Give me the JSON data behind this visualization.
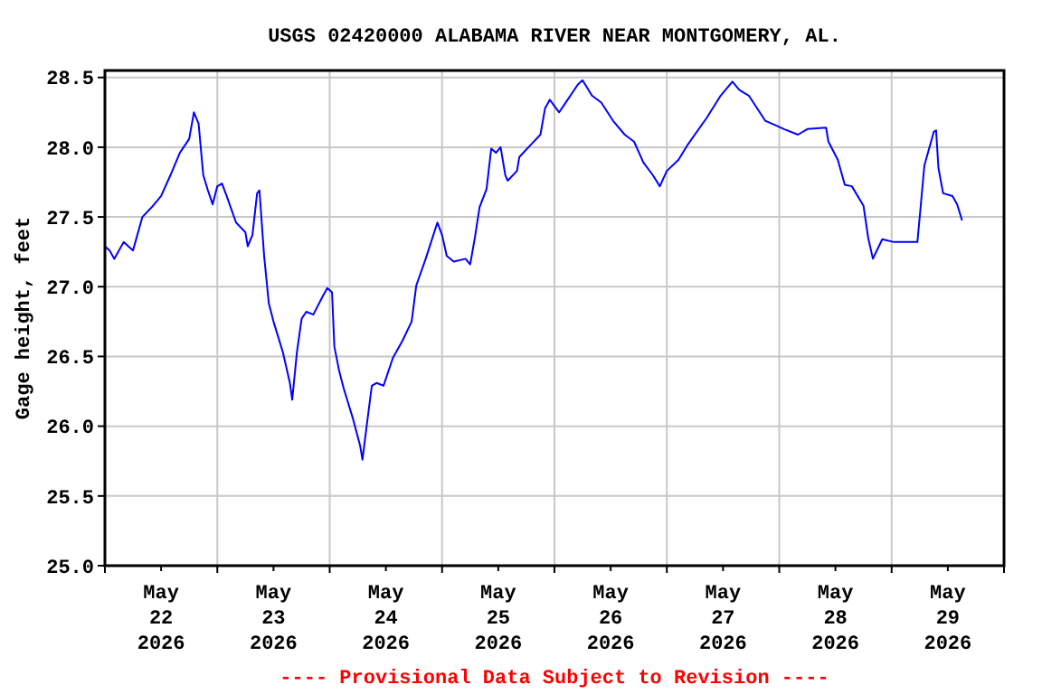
{
  "chart_data": {
    "type": "line",
    "title": "USGS 02420000 ALABAMA RIVER NEAR MONTGOMERY, AL.",
    "ylabel": "Gage height, feet",
    "annotations": [
      "---- Provisional Data Subject to Revision ----"
    ],
    "xlim": [
      "2026-05-22T00:00",
      "2026-05-30T00:00"
    ],
    "xticks": [
      {
        "value": "2026-05-22T00:00",
        "label": null
      },
      {
        "value": "2026-05-22T12:00",
        "label": "May\n22\n2026"
      },
      {
        "value": "2026-05-23T00:00",
        "label": null
      },
      {
        "value": "2026-05-23T12:00",
        "label": "May\n23\n2026"
      },
      {
        "value": "2026-05-24T00:00",
        "label": null
      },
      {
        "value": "2026-05-24T12:00",
        "label": "May\n24\n2026"
      },
      {
        "value": "2026-05-25T00:00",
        "label": null
      },
      {
        "value": "2026-05-25T12:00",
        "label": "May\n25\n2026"
      },
      {
        "value": "2026-05-26T00:00",
        "label": null
      },
      {
        "value": "2026-05-26T12:00",
        "label": "May\n26\n2026"
      },
      {
        "value": "2026-05-27T00:00",
        "label": null
      },
      {
        "value": "2026-05-27T12:00",
        "label": "May\n27\n2026"
      },
      {
        "value": "2026-05-28T00:00",
        "label": null
      },
      {
        "value": "2026-05-28T12:00",
        "label": "May\n28\n2026"
      },
      {
        "value": "2026-05-29T00:00",
        "label": null
      },
      {
        "value": "2026-05-29T12:00",
        "label": "May\n29\n2026"
      },
      {
        "value": "2026-05-30T00:00",
        "label": null
      }
    ],
    "ylim": [
      25,
      28.55
    ],
    "yticks": [
      {
        "value": 25,
        "label": "25.0"
      },
      {
        "value": 25.5,
        "label": "25.5"
      },
      {
        "value": 26,
        "label": "26.0"
      },
      {
        "value": 26.5,
        "label": "26.5"
      },
      {
        "value": 27,
        "label": "27.0"
      },
      {
        "value": 27.5,
        "label": "27.5"
      },
      {
        "value": 28,
        "label": "28.0"
      },
      {
        "value": 28.5,
        "label": "28.5"
      }
    ],
    "grid": true,
    "marker": "none",
    "line_style": "solid",
    "series": [
      {
        "color": "#0000ff",
        "x": [
          "2026-05-22T00:00",
          "2026-05-22T01:00",
          "2026-05-22T02:00",
          "2026-05-22T04:00",
          "2026-05-22T05:00",
          "2026-05-22T06:00",
          "2026-05-22T08:00",
          "2026-05-22T10:00",
          "2026-05-22T12:00",
          "2026-05-22T14:00",
          "2026-05-22T16:00",
          "2026-05-22T18:00",
          "2026-05-22T19:00",
          "2026-05-22T20:00",
          "2026-05-22T21:00",
          "2026-05-22T22:00",
          "2026-05-22T23:00",
          "2026-05-23T00:00",
          "2026-05-23T01:00",
          "2026-05-23T02:00",
          "2026-05-23T04:00",
          "2026-05-23T06:00",
          "2026-05-23T06:30",
          "2026-05-23T07:30",
          "2026-05-23T08:30",
          "2026-05-23T09:00",
          "2026-05-23T10:00",
          "2026-05-23T11:00",
          "2026-05-23T12:00",
          "2026-05-23T14:00",
          "2026-05-23T15:30",
          "2026-05-23T16:00",
          "2026-05-23T17:00",
          "2026-05-23T18:00",
          "2026-05-23T19:00",
          "2026-05-23T20:30",
          "2026-05-23T22:30",
          "2026-05-23T23:30",
          "2026-05-24T00:30",
          "2026-05-24T01:00",
          "2026-05-24T02:00",
          "2026-05-24T03:00",
          "2026-05-24T05:00",
          "2026-05-24T06:30",
          "2026-05-24T07:00",
          "2026-05-24T08:00",
          "2026-05-24T09:00",
          "2026-05-24T10:00",
          "2026-05-24T11:30",
          "2026-05-24T13:30",
          "2026-05-24T15:30",
          "2026-05-24T17:30",
          "2026-05-24T18:30",
          "2026-05-24T20:30",
          "2026-05-24T23:00",
          "2026-05-25T00:00",
          "2026-05-25T01:00",
          "2026-05-25T02:30",
          "2026-05-25T05:00",
          "2026-05-25T06:00",
          "2026-05-25T07:00",
          "2026-05-25T08:00",
          "2026-05-25T09:30",
          "2026-05-25T10:30",
          "2026-05-25T11:30",
          "2026-05-25T12:30",
          "2026-05-25T13:30",
          "2026-05-25T14:00",
          "2026-05-25T16:00",
          "2026-05-25T16:30",
          "2026-05-25T19:00",
          "2026-05-25T21:00",
          "2026-05-25T22:00",
          "2026-05-25T23:00",
          "2026-05-26T01:00",
          "2026-05-26T02:00",
          "2026-05-26T05:00",
          "2026-05-26T06:00",
          "2026-05-26T08:00",
          "2026-05-26T10:00",
          "2026-05-26T12:30",
          "2026-05-26T15:00",
          "2026-05-26T17:00",
          "2026-05-26T19:00",
          "2026-05-26T21:00",
          "2026-05-26T22:30",
          "2026-05-27T00:00",
          "2026-05-27T02:30",
          "2026-05-27T04:30",
          "2026-05-27T08:30",
          "2026-05-27T11:30",
          "2026-05-27T14:00",
          "2026-05-27T15:30",
          "2026-05-27T17:30",
          "2026-05-27T21:00",
          "2026-05-27T23:00",
          "2026-05-28T01:00",
          "2026-05-28T04:00",
          "2026-05-28T06:00",
          "2026-05-28T10:00",
          "2026-05-28T10:30",
          "2026-05-28T12:30",
          "2026-05-28T14:00",
          "2026-05-28T15:30",
          "2026-05-28T18:00",
          "2026-05-28T19:00",
          "2026-05-28T20:00",
          "2026-05-28T22:00",
          "2026-05-29T00:30",
          "2026-05-29T03:00",
          "2026-05-29T05:30",
          "2026-05-29T06:00",
          "2026-05-29T07:00",
          "2026-05-29T09:00",
          "2026-05-29T09:30",
          "2026-05-29T10:00",
          "2026-05-29T11:00",
          "2026-05-29T13:00",
          "2026-05-29T14:00",
          "2026-05-29T15:00"
        ],
        "values": [
          27.29,
          27.26,
          27.2,
          27.32,
          27.29,
          27.26,
          27.5,
          27.57,
          27.65,
          27.8,
          27.96,
          28.06,
          28.25,
          28.17,
          27.8,
          27.69,
          27.59,
          27.72,
          27.74,
          27.65,
          27.46,
          27.39,
          27.29,
          27.37,
          27.67,
          27.69,
          27.22,
          26.88,
          26.75,
          26.53,
          26.31,
          26.19,
          26.53,
          26.77,
          26.82,
          26.8,
          26.93,
          26.99,
          26.96,
          26.57,
          26.4,
          26.27,
          26.05,
          25.86,
          25.76,
          26.03,
          26.29,
          26.31,
          26.29,
          26.49,
          26.61,
          26.75,
          27.01,
          27.2,
          27.46,
          27.37,
          27.22,
          27.18,
          27.2,
          27.16,
          27.35,
          27.57,
          27.7,
          27.99,
          27.96,
          28.0,
          27.8,
          27.76,
          27.83,
          27.93,
          28.02,
          28.09,
          28.28,
          28.34,
          28.25,
          28.3,
          28.45,
          28.48,
          28.37,
          28.32,
          28.19,
          28.09,
          28.04,
          27.89,
          27.8,
          27.72,
          27.83,
          27.91,
          28.02,
          28.21,
          28.37,
          28.47,
          28.41,
          28.37,
          28.19,
          28.16,
          28.13,
          28.09,
          28.13,
          28.14,
          28.04,
          27.91,
          27.73,
          27.72,
          27.58,
          27.35,
          27.2,
          27.34,
          27.32,
          27.32,
          27.32,
          27.5,
          27.87,
          28.11,
          28.12,
          27.85,
          27.67,
          27.65,
          27.59,
          27.48
        ]
      }
    ]
  }
}
